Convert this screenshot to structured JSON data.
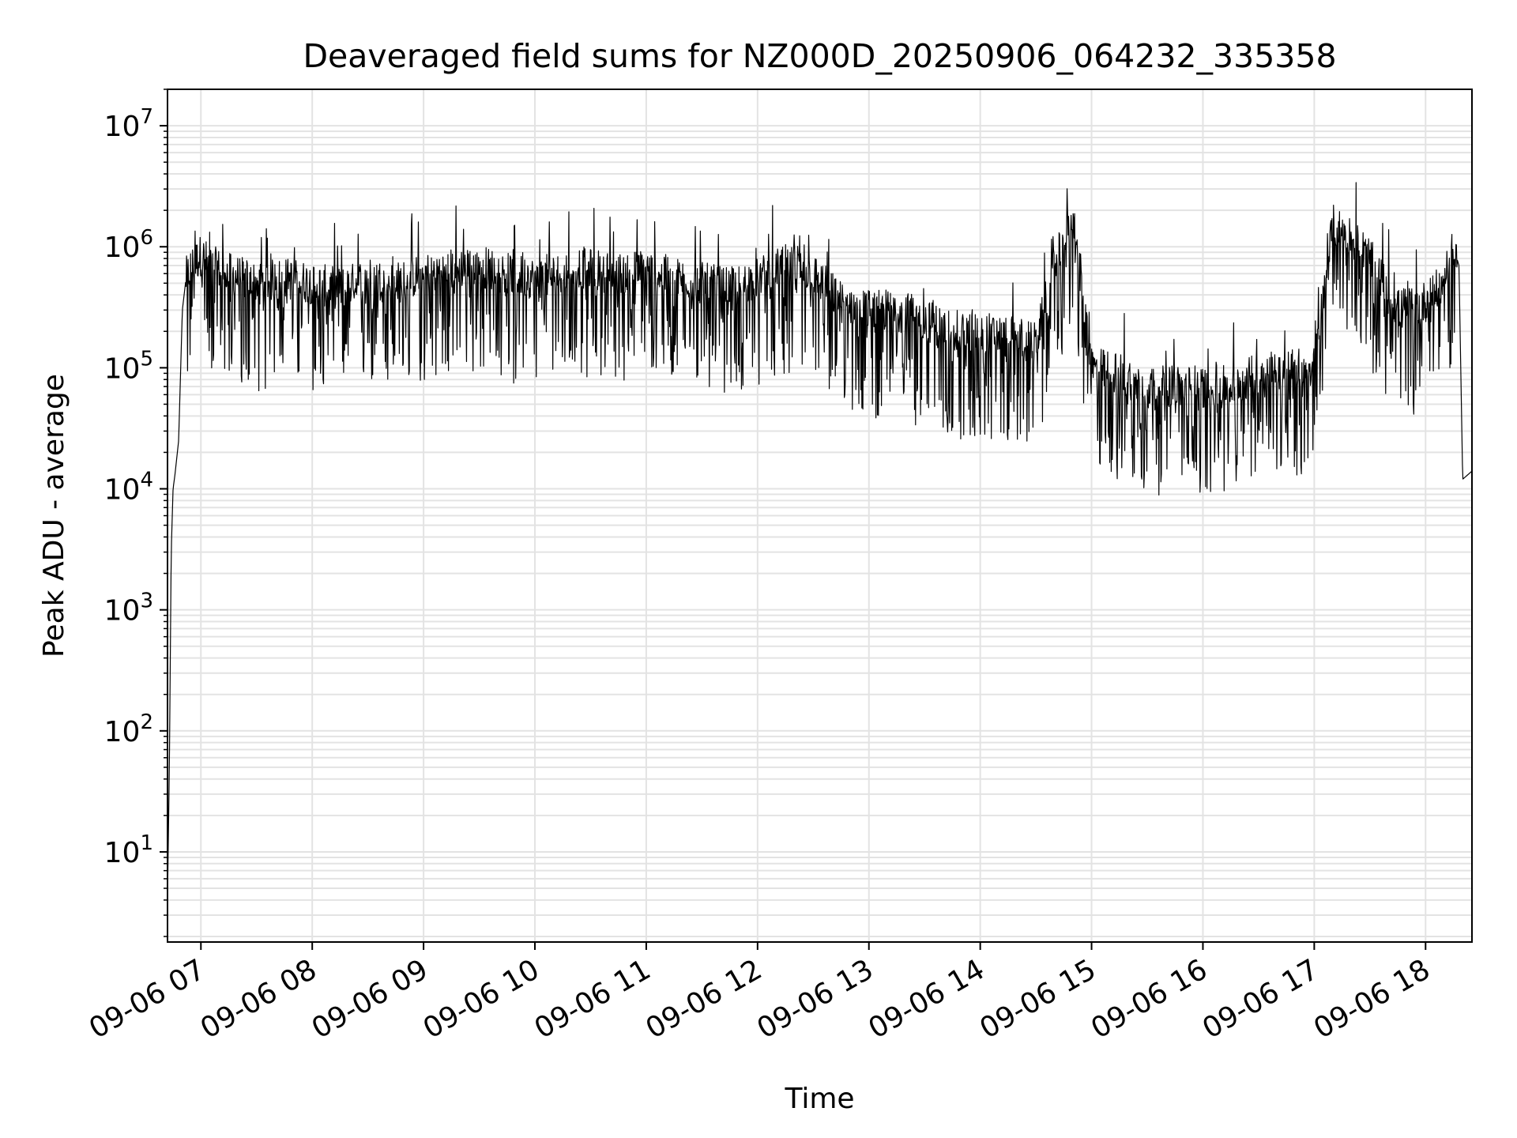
{
  "chart_data": {
    "type": "line",
    "title": "Deaveraged field sums for NZ000D_20250906_064232_335358",
    "xlabel": "Time",
    "ylabel": "Peak ADU - average",
    "yscale": "log",
    "ylim": [
      1.8,
      20000000
    ],
    "xlim": [
      "2025-09-06 06:42",
      "2025-09-06 18:25"
    ],
    "grid": "both, major and minor",
    "line_color": "#000000",
    "x_ticks": [
      {
        "value": "2025-09-06 07:00",
        "label": "09-06 07"
      },
      {
        "value": "2025-09-06 08:00",
        "label": "09-06 08"
      },
      {
        "value": "2025-09-06 09:00",
        "label": "09-06 09"
      },
      {
        "value": "2025-09-06 10:00",
        "label": "09-06 10"
      },
      {
        "value": "2025-09-06 11:00",
        "label": "09-06 11"
      },
      {
        "value": "2025-09-06 12:00",
        "label": "09-06 12"
      },
      {
        "value": "2025-09-06 13:00",
        "label": "09-06 13"
      },
      {
        "value": "2025-09-06 14:00",
        "label": "09-06 14"
      },
      {
        "value": "2025-09-06 15:00",
        "label": "09-06 15"
      },
      {
        "value": "2025-09-06 16:00",
        "label": "09-06 16"
      },
      {
        "value": "2025-09-06 17:00",
        "label": "09-06 17"
      },
      {
        "value": "2025-09-06 18:00",
        "label": "09-06 18"
      }
    ],
    "y_ticks": [
      {
        "value": 10,
        "base": "10",
        "exp": "1"
      },
      {
        "value": 100,
        "base": "10",
        "exp": "2"
      },
      {
        "value": 1000,
        "base": "10",
        "exp": "3"
      },
      {
        "value": 10000,
        "base": "10",
        "exp": "4"
      },
      {
        "value": 100000,
        "base": "10",
        "exp": "5"
      },
      {
        "value": 1000000,
        "base": "10",
        "exp": "6"
      },
      {
        "value": 10000000,
        "base": "10",
        "exp": "7"
      }
    ],
    "series": [
      {
        "x": [
          "2025-09-06 06:42",
          "2025-09-06 06:43",
          "2025-09-06 06:44",
          "2025-09-06 06:45",
          "2025-09-06 06:46",
          "2025-09-06 06:48",
          "2025-09-06 06:50",
          "2025-09-06 06:52",
          "2025-09-06 06:54",
          "2025-09-06 06:57",
          "2025-09-06 07:00",
          "2025-09-06 07:05",
          "2025-09-06 07:15",
          "2025-09-06 07:30",
          "2025-09-06 07:45",
          "2025-09-06 08:00",
          "2025-09-06 08:15",
          "2025-09-06 08:30",
          "2025-09-06 08:45",
          "2025-09-06 09:00",
          "2025-09-06 09:15",
          "2025-09-06 09:30",
          "2025-09-06 09:45",
          "2025-09-06 10:00",
          "2025-09-06 10:15",
          "2025-09-06 10:22",
          "2025-09-06 10:30",
          "2025-09-06 10:45",
          "2025-09-06 11:00",
          "2025-09-06 11:15",
          "2025-09-06 11:30",
          "2025-09-06 11:45",
          "2025-09-06 12:00",
          "2025-09-06 12:15",
          "2025-09-06 12:30",
          "2025-09-06 12:45",
          "2025-09-06 13:00",
          "2025-09-06 13:15",
          "2025-09-06 13:30",
          "2025-09-06 13:45",
          "2025-09-06 14:00",
          "2025-09-06 14:15",
          "2025-09-06 14:30",
          "2025-09-06 14:40",
          "2025-09-06 14:46",
          "2025-09-06 14:50",
          "2025-09-06 15:00",
          "2025-09-06 15:15",
          "2025-09-06 15:30",
          "2025-09-06 15:45",
          "2025-09-06 16:00",
          "2025-09-06 16:15",
          "2025-09-06 16:30",
          "2025-09-06 16:45",
          "2025-09-06 17:00",
          "2025-09-06 17:10",
          "2025-09-06 17:20",
          "2025-09-06 17:30",
          "2025-09-06 17:45",
          "2025-09-06 18:00",
          "2025-09-06 18:10",
          "2025-09-06 18:15",
          "2025-09-06 18:18",
          "2025-09-06 18:20",
          "2025-09-06 18:25"
        ],
        "y": [
          4,
          50,
          3000,
          10000,
          13000,
          25000,
          300000,
          550000,
          650000,
          750000,
          850000,
          700000,
          600000,
          500000,
          550000,
          500000,
          450000,
          550000,
          500000,
          600000,
          650000,
          700000,
          600000,
          550000,
          600000,
          700000,
          650000,
          600000,
          650000,
          550000,
          500000,
          450000,
          550000,
          700000,
          600000,
          350000,
          300000,
          300000,
          250000,
          200000,
          200000,
          180000,
          160000,
          700000,
          1200000,
          2000000,
          100000,
          90000,
          70000,
          70000,
          70000,
          70000,
          90000,
          100000,
          100000,
          1500000,
          1200000,
          800000,
          300000,
          350000,
          500000,
          1000000,
          700000,
          12000,
          14000
        ]
      }
    ]
  }
}
